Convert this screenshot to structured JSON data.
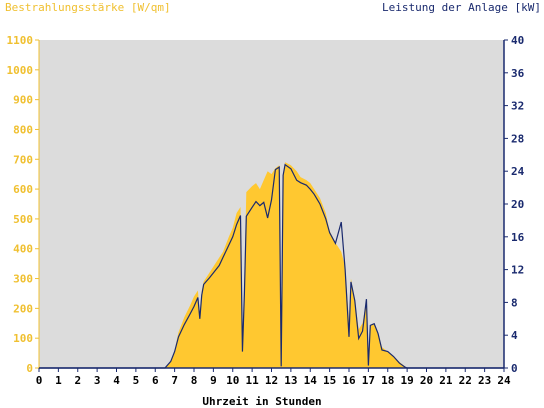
{
  "chart_data": {
    "type": "area",
    "title_left": "Bestrahlungsstärke [W/qm]",
    "title_right": "Leistung der Anlage [kW]",
    "xlabel": "Uhrzeit in Stunden",
    "xlim": [
      0,
      24
    ],
    "x_ticks": [
      "0",
      "1",
      "2",
      "3",
      "4",
      "5",
      "6",
      "7",
      "8",
      "9",
      "10",
      "11",
      "12",
      "13",
      "14",
      "15",
      "16",
      "17",
      "18",
      "19",
      "20",
      "21",
      "22",
      "23",
      "24"
    ],
    "y_left_lim": [
      0,
      1100
    ],
    "y_left_ticks": [
      "0",
      "100",
      "200",
      "300",
      "400",
      "500",
      "600",
      "700",
      "800",
      "900",
      "1000",
      "1100"
    ],
    "y_right_lim": [
      0,
      40
    ],
    "y_right_ticks": [
      "0",
      "4",
      "8",
      "12",
      "16",
      "20",
      "24",
      "28",
      "32",
      "36",
      "40"
    ],
    "colors": {
      "plot_bg": "#dcdcdc",
      "irradiance_fill": "#ffc830",
      "power_line": "#1a2a6e",
      "left_axis": "#f0c030",
      "right_axis": "#1a2a6e"
    },
    "series": [
      {
        "name": "Bestrahlungsstärke",
        "axis": "left",
        "points": [
          [
            0,
            0
          ],
          [
            6.5,
            0
          ],
          [
            6.8,
            20
          ],
          [
            7.0,
            60
          ],
          [
            7.2,
            120
          ],
          [
            7.5,
            170
          ],
          [
            7.8,
            210
          ],
          [
            8.0,
            240
          ],
          [
            8.2,
            260
          ],
          [
            8.3,
            180
          ],
          [
            8.4,
            260
          ],
          [
            8.5,
            290
          ],
          [
            8.8,
            320
          ],
          [
            9.0,
            340
          ],
          [
            9.3,
            370
          ],
          [
            9.5,
            390
          ],
          [
            9.8,
            440
          ],
          [
            10.0,
            470
          ],
          [
            10.2,
            520
          ],
          [
            10.4,
            540
          ],
          [
            10.5,
            60
          ],
          [
            10.6,
            300
          ],
          [
            10.7,
            590
          ],
          [
            11.0,
            610
          ],
          [
            11.2,
            620
          ],
          [
            11.4,
            600
          ],
          [
            11.6,
            630
          ],
          [
            11.8,
            660
          ],
          [
            12.0,
            650
          ],
          [
            12.2,
            670
          ],
          [
            12.4,
            680
          ],
          [
            12.5,
            40
          ],
          [
            12.6,
            650
          ],
          [
            12.7,
            690
          ],
          [
            13.0,
            680
          ],
          [
            13.3,
            660
          ],
          [
            13.5,
            640
          ],
          [
            13.8,
            630
          ],
          [
            14.0,
            620
          ],
          [
            14.2,
            600
          ],
          [
            14.5,
            570
          ],
          [
            14.8,
            520
          ],
          [
            15.0,
            460
          ],
          [
            15.3,
            420
          ],
          [
            15.6,
            390
          ],
          [
            15.8,
            340
          ],
          [
            16.0,
            160
          ],
          [
            16.1,
            300
          ],
          [
            16.3,
            230
          ],
          [
            16.5,
            130
          ],
          [
            16.7,
            150
          ],
          [
            16.9,
            230
          ],
          [
            17.0,
            40
          ],
          [
            17.1,
            140
          ],
          [
            17.3,
            150
          ],
          [
            17.5,
            120
          ],
          [
            17.7,
            70
          ],
          [
            18.0,
            55
          ],
          [
            18.3,
            40
          ],
          [
            18.6,
            20
          ],
          [
            18.9,
            5
          ],
          [
            19.0,
            0
          ],
          [
            24,
            0
          ]
        ]
      },
      {
        "name": "Leistung der Anlage",
        "axis": "right",
        "points": [
          [
            0,
            0
          ],
          [
            6.5,
            0
          ],
          [
            6.8,
            0.8
          ],
          [
            7.0,
            2.0
          ],
          [
            7.2,
            3.8
          ],
          [
            7.5,
            5.3
          ],
          [
            7.8,
            6.6
          ],
          [
            8.0,
            7.5
          ],
          [
            8.2,
            8.6
          ],
          [
            8.3,
            6.0
          ],
          [
            8.4,
            8.9
          ],
          [
            8.5,
            10.2
          ],
          [
            8.8,
            11.0
          ],
          [
            9.0,
            11.6
          ],
          [
            9.3,
            12.5
          ],
          [
            9.5,
            13.5
          ],
          [
            9.8,
            15.0
          ],
          [
            10.0,
            16.0
          ],
          [
            10.2,
            17.5
          ],
          [
            10.4,
            18.6
          ],
          [
            10.5,
            2.0
          ],
          [
            10.6,
            9.0
          ],
          [
            10.7,
            18.5
          ],
          [
            11.0,
            19.6
          ],
          [
            11.2,
            20.3
          ],
          [
            11.4,
            19.8
          ],
          [
            11.6,
            20.2
          ],
          [
            11.8,
            18.3
          ],
          [
            12.0,
            20.5
          ],
          [
            12.2,
            24.2
          ],
          [
            12.4,
            24.5
          ],
          [
            12.5,
            0.2
          ],
          [
            12.6,
            23.5
          ],
          [
            12.7,
            24.8
          ],
          [
            13.0,
            24.3
          ],
          [
            13.3,
            22.9
          ],
          [
            13.5,
            22.6
          ],
          [
            13.8,
            22.3
          ],
          [
            14.0,
            21.8
          ],
          [
            14.2,
            21.2
          ],
          [
            14.5,
            20.0
          ],
          [
            14.8,
            18.2
          ],
          [
            15.0,
            16.5
          ],
          [
            15.3,
            15.2
          ],
          [
            15.6,
            17.8
          ],
          [
            15.8,
            12.0
          ],
          [
            16.0,
            3.8
          ],
          [
            16.1,
            10.5
          ],
          [
            16.3,
            8.2
          ],
          [
            16.5,
            3.6
          ],
          [
            16.7,
            4.5
          ],
          [
            16.9,
            8.4
          ],
          [
            17.0,
            0.3
          ],
          [
            17.1,
            5.2
          ],
          [
            17.3,
            5.4
          ],
          [
            17.5,
            4.2
          ],
          [
            17.7,
            2.2
          ],
          [
            18.0,
            2.0
          ],
          [
            18.3,
            1.4
          ],
          [
            18.6,
            0.6
          ],
          [
            18.9,
            0.1
          ],
          [
            19.0,
            0
          ],
          [
            24,
            0
          ]
        ]
      }
    ]
  }
}
